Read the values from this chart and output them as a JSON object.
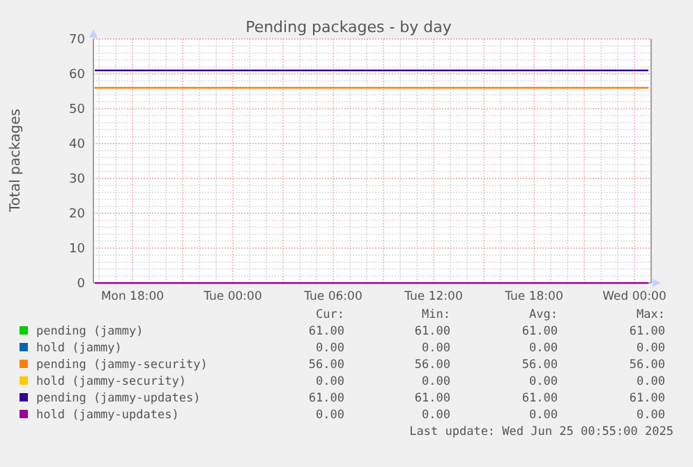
{
  "chart_data": {
    "type": "line",
    "title": "Pending packages - by day",
    "ylabel": "Total packages",
    "x": [
      "2025-06-23T15:45",
      "2025-06-25T00:50"
    ],
    "xlim": [
      "2025-06-23T15:40",
      "2025-06-25T01:00"
    ],
    "xticks": [
      {
        "value": "2025-06-23T18:00",
        "label": "Mon 18:00"
      },
      {
        "value": "2025-06-24T00:00",
        "label": "Tue 00:00"
      },
      {
        "value": "2025-06-24T06:00",
        "label": "Tue 06:00"
      },
      {
        "value": "2025-06-24T12:00",
        "label": "Tue 12:00"
      },
      {
        "value": "2025-06-24T18:00",
        "label": "Tue 18:00"
      },
      {
        "value": "2025-06-25T00:00",
        "label": "Wed 00:00"
      }
    ],
    "ylim": [
      0,
      70
    ],
    "yticks": [
      0,
      10,
      20,
      30,
      40,
      50,
      60,
      70
    ],
    "grid": true,
    "legend": "bottom",
    "line_style": "solid",
    "marker": "none",
    "series": [
      {
        "name": "pending (jammy)",
        "color": "#00cc00",
        "values": [
          null,
          null
        ]
      },
      {
        "name": "hold (jammy)",
        "color": "#0066b3",
        "values": [
          null,
          null
        ]
      },
      {
        "name": "pending (jammy-security)",
        "color": "#ff8000",
        "values": [
          56,
          56
        ]
      },
      {
        "name": "hold (jammy-security)",
        "color": "#ffcc00",
        "values": [
          null,
          null
        ]
      },
      {
        "name": "pending (jammy-updates)",
        "color": "#330099",
        "values": [
          61,
          61
        ]
      },
      {
        "name": "hold (jammy-updates)",
        "color": "#990099",
        "values": [
          0,
          0
        ]
      }
    ],
    "annotations": [
      "Cur:",
      "Min:",
      "Avg:",
      "Max:",
      "61.00",
      "61.00",
      "61.00",
      "61.00",
      "0.00",
      "0.00",
      "0.00",
      "0.00",
      "56.00",
      "56.00",
      "56.00",
      "56.00",
      "0.00",
      "0.00",
      "0.00",
      "0.00",
      "61.00",
      "61.00",
      "61.00",
      "61.00",
      "0.00",
      "0.00",
      "0.00",
      "0.00",
      "Last update: Wed Jun 25 00:55:00 2025"
    ]
  }
}
